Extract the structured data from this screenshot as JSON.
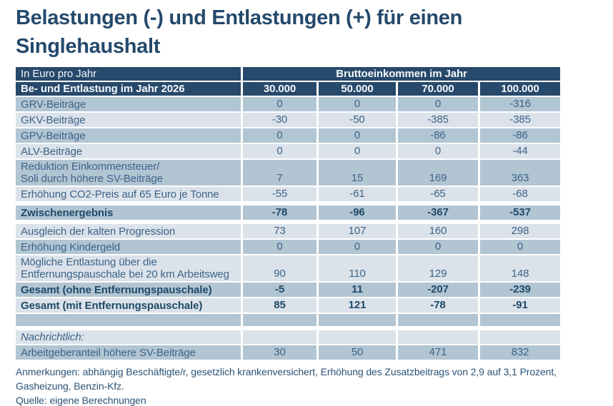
{
  "title": {
    "line1": "Belastungen (-) und Entlastungen (+) für einen",
    "line2": "Singlehaushalt"
  },
  "chart_data": {
    "type": "table",
    "unit_label": "In Euro pro Jahr",
    "column_group_label": "Bruttoeinkommen im Jahr",
    "row_header_label": "Be- und Entlastung im Jahr 2026",
    "columns": [
      "30.000",
      "50.000",
      "70.000",
      "100.000"
    ],
    "rows": [
      {
        "label": "GRV-Beiträge",
        "values": [
          "0",
          "0",
          "0",
          "-316"
        ]
      },
      {
        "label": "GKV-Beiträge",
        "values": [
          "-30",
          "-50",
          "-385",
          "-385"
        ]
      },
      {
        "label": "GPV-Beiträge",
        "values": [
          "0",
          "0",
          "-86",
          "-86"
        ]
      },
      {
        "label": "ALV-Beiträge",
        "values": [
          "0",
          "0",
          "0",
          "-44"
        ]
      },
      {
        "label": "Reduktion Einkommensteuer/\nSoli durch höhere SV-Beiträge",
        "values": [
          "7",
          "15",
          "169",
          "363"
        ]
      },
      {
        "label": "Erhöhung CO2-Preis auf 65 Euro je Tonne",
        "values": [
          "-55",
          "-61",
          "-65",
          "-68"
        ]
      },
      {
        "label": "Zwischenergebnis",
        "values": [
          "-78",
          "-96",
          "-367",
          "-537"
        ],
        "bold": true,
        "gap_before": true
      },
      {
        "label": "Ausgleich der kalten Progression",
        "values": [
          "73",
          "107",
          "160",
          "298"
        ],
        "gap_before": true
      },
      {
        "label": "Erhöhung Kindergeld",
        "values": [
          "0",
          "0",
          "0",
          "0"
        ]
      },
      {
        "label": "Mögliche Entlastung über die\nEntfernungspauschale bei 20 km Arbeitsweg",
        "values": [
          "90",
          "110",
          "129",
          "148"
        ]
      },
      {
        "label": "Gesamt (ohne Entfernungspauschale)",
        "values": [
          "-5",
          "11",
          "-207",
          "-239"
        ],
        "bold": true
      },
      {
        "label": "Gesamt (mit Entfernungspauschale)",
        "values": [
          "85",
          "121",
          "-78",
          "-91"
        ],
        "bold": true
      },
      {
        "label": "",
        "values": [
          "",
          "",
          "",
          ""
        ]
      },
      {
        "label": "Nachrichtlich:",
        "values": [
          "",
          "",
          "",
          ""
        ],
        "italic": true,
        "gap_before": true
      },
      {
        "label": "Arbeitgeberanteil höhere SV-Beiträge",
        "values": [
          "30",
          "50",
          "471",
          "832"
        ]
      }
    ]
  },
  "footer": {
    "notes": "Anmerkungen: abhängig Beschäftigte/r, gesetzlich krankenversichert, Erhöhung des Zusatzbeitrags von 2,9 auf 3,1 Prozent, Gasheizung, Benzin-Kfz.",
    "source": "Quelle: eigene Berechnungen"
  },
  "colors": {
    "header_bg": "#27496b",
    "row_dark": "#b2c5d3",
    "row_light": "#dbe2ea",
    "text": "#3d6488",
    "text_strong": "#1f4968",
    "title": "#24496b"
  }
}
